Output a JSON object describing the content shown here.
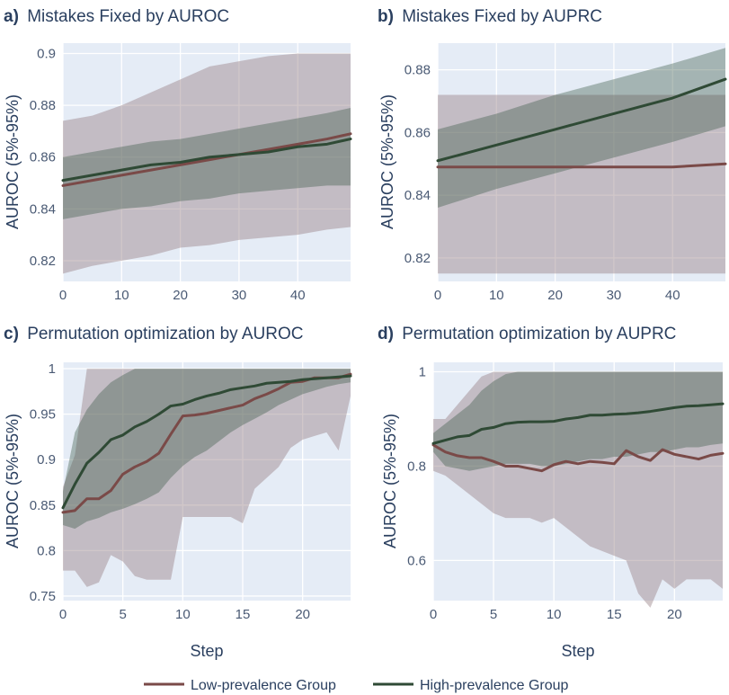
{
  "colors": {
    "low": "#7a4a48",
    "high": "#2f4a35",
    "low_band": "#9a8287",
    "high_band": "#3a5a48",
    "plot_bg": "#e5ecf6"
  },
  "legend": {
    "low_label": "Low-prevalence Group",
    "high_label": "High-prevalence Group"
  },
  "chart_data": [
    {
      "id": "a",
      "type": "line",
      "panel_letter": "a)",
      "title": "Mistakes Fixed by AUROC",
      "ylabel": "AUROC (5%-95%)",
      "xlabel": "",
      "xlim": [
        0,
        49
      ],
      "ylim": [
        0.812,
        0.904
      ],
      "xticks": [
        0,
        10,
        20,
        30,
        40
      ],
      "yticks": [
        0.82,
        0.84,
        0.86,
        0.88,
        0.9
      ],
      "x": [
        0,
        5,
        10,
        15,
        20,
        25,
        30,
        35,
        40,
        45,
        49
      ],
      "series": [
        {
          "name": "Low-prevalence Group",
          "values": [
            0.849,
            0.851,
            0.853,
            0.855,
            0.857,
            0.859,
            0.861,
            0.863,
            0.865,
            0.867,
            0.869
          ],
          "lower": [
            0.815,
            0.818,
            0.82,
            0.822,
            0.825,
            0.826,
            0.828,
            0.829,
            0.83,
            0.832,
            0.833
          ],
          "upper": [
            0.874,
            0.876,
            0.88,
            0.885,
            0.89,
            0.895,
            0.897,
            0.899,
            0.9,
            0.9,
            0.9
          ]
        },
        {
          "name": "High-prevalence Group",
          "values": [
            0.851,
            0.853,
            0.855,
            0.857,
            0.858,
            0.86,
            0.861,
            0.862,
            0.864,
            0.865,
            0.867
          ],
          "lower": [
            0.836,
            0.838,
            0.84,
            0.841,
            0.843,
            0.844,
            0.846,
            0.847,
            0.848,
            0.849,
            0.849
          ],
          "upper": [
            0.86,
            0.862,
            0.864,
            0.866,
            0.867,
            0.869,
            0.871,
            0.873,
            0.875,
            0.877,
            0.879
          ]
        }
      ]
    },
    {
      "id": "b",
      "type": "line",
      "panel_letter": "b)",
      "title": "Mistakes Fixed by AUPRC",
      "ylabel": "AUROC (5%-95%)",
      "xlabel": "",
      "xlim": [
        0,
        49
      ],
      "ylim": [
        0.8125,
        0.8885
      ],
      "xticks": [
        0,
        10,
        20,
        30,
        40
      ],
      "yticks": [
        0.82,
        0.84,
        0.86,
        0.88
      ],
      "x": [
        0,
        10,
        20,
        30,
        40,
        49
      ],
      "series": [
        {
          "name": "Low-prevalence Group",
          "values": [
            0.849,
            0.849,
            0.849,
            0.849,
            0.849,
            0.85
          ],
          "lower": [
            0.815,
            0.815,
            0.815,
            0.815,
            0.815,
            0.815
          ],
          "upper": [
            0.872,
            0.872,
            0.872,
            0.872,
            0.872,
            0.872
          ]
        },
        {
          "name": "High-prevalence Group",
          "values": [
            0.851,
            0.856,
            0.861,
            0.866,
            0.871,
            0.877
          ],
          "lower": [
            0.836,
            0.842,
            0.847,
            0.852,
            0.857,
            0.862
          ],
          "upper": [
            0.861,
            0.866,
            0.872,
            0.877,
            0.882,
            0.887
          ]
        }
      ]
    },
    {
      "id": "c",
      "type": "line",
      "panel_letter": "c)",
      "title": "Permutation optimization by AUROC",
      "ylabel": "AUROC (5%-95%)",
      "xlabel": "Step",
      "xlim": [
        0,
        24
      ],
      "ylim": [
        0.745,
        1.007
      ],
      "xticks": [
        0,
        5,
        10,
        15,
        20
      ],
      "yticks": [
        0.75,
        0.8,
        0.85,
        0.9,
        0.95,
        1
      ],
      "x": [
        0,
        1,
        2,
        3,
        4,
        5,
        6,
        7,
        8,
        9,
        10,
        11,
        12,
        13,
        14,
        15,
        16,
        17,
        18,
        19,
        20,
        21,
        22,
        23,
        24
      ],
      "series": [
        {
          "name": "Low-prevalence Group",
          "values": [
            0.842,
            0.844,
            0.857,
            0.857,
            0.866,
            0.884,
            0.892,
            0.898,
            0.907,
            0.928,
            0.948,
            0.949,
            0.951,
            0.954,
            0.957,
            0.96,
            0.967,
            0.972,
            0.978,
            0.985,
            0.986,
            0.99,
            0.99,
            0.99,
            0.994
          ],
          "lower": [
            0.778,
            0.778,
            0.76,
            0.765,
            0.795,
            0.788,
            0.772,
            0.768,
            0.768,
            0.768,
            0.837,
            0.837,
            0.837,
            0.837,
            0.837,
            0.83,
            0.868,
            0.88,
            0.892,
            0.913,
            0.922,
            0.926,
            0.93,
            0.91,
            0.97
          ],
          "upper": [
            0.87,
            0.905,
            1.0,
            1.0,
            1.0,
            1.0,
            1.0,
            1.0,
            1.0,
            1.0,
            1.0,
            1.0,
            1.0,
            1.0,
            1.0,
            1.0,
            1.0,
            1.0,
            1.0,
            1.0,
            1.0,
            1.0,
            1.0,
            1.0,
            1.0
          ]
        },
        {
          "name": "High-prevalence Group",
          "values": [
            0.847,
            0.873,
            0.896,
            0.908,
            0.922,
            0.927,
            0.936,
            0.942,
            0.95,
            0.959,
            0.961,
            0.966,
            0.97,
            0.973,
            0.977,
            0.979,
            0.981,
            0.984,
            0.985,
            0.986,
            0.988,
            0.989,
            0.99,
            0.991,
            0.992
          ],
          "lower": [
            0.828,
            0.824,
            0.832,
            0.836,
            0.842,
            0.846,
            0.851,
            0.857,
            0.864,
            0.88,
            0.893,
            0.903,
            0.91,
            0.92,
            0.93,
            0.938,
            0.945,
            0.952,
            0.96,
            0.966,
            0.972,
            0.976,
            0.98,
            0.983,
            0.985
          ],
          "upper": [
            0.865,
            0.93,
            0.955,
            0.972,
            0.985,
            0.993,
            1.0,
            1.0,
            1.0,
            1.0,
            1.0,
            1.0,
            1.0,
            1.0,
            1.0,
            1.0,
            1.0,
            1.0,
            1.0,
            1.0,
            1.0,
            1.0,
            1.0,
            1.0,
            1.0
          ]
        }
      ]
    },
    {
      "id": "d",
      "type": "line",
      "panel_letter": "d)",
      "title": "Permutation optimization by AUPRC",
      "ylabel": "AUROC (5%-95%)",
      "xlabel": "Step",
      "xlim": [
        0,
        24
      ],
      "ylim": [
        0.515,
        1.02
      ],
      "xticks": [
        0,
        5,
        10,
        15,
        20
      ],
      "yticks": [
        0.6,
        0.8,
        1
      ],
      "x": [
        0,
        1,
        2,
        3,
        4,
        5,
        6,
        7,
        8,
        9,
        10,
        11,
        12,
        13,
        14,
        15,
        16,
        17,
        18,
        19,
        20,
        21,
        22,
        23,
        24
      ],
      "series": [
        {
          "name": "Low-prevalence Group",
          "values": [
            0.845,
            0.83,
            0.822,
            0.818,
            0.818,
            0.81,
            0.8,
            0.8,
            0.795,
            0.79,
            0.803,
            0.81,
            0.805,
            0.81,
            0.808,
            0.805,
            0.833,
            0.82,
            0.812,
            0.835,
            0.825,
            0.82,
            0.815,
            0.823,
            0.827
          ],
          "lower": [
            0.79,
            0.78,
            0.76,
            0.74,
            0.72,
            0.7,
            0.69,
            0.69,
            0.69,
            0.68,
            0.69,
            0.67,
            0.65,
            0.63,
            0.62,
            0.61,
            0.6,
            0.53,
            0.5,
            0.56,
            0.54,
            0.56,
            0.56,
            0.56,
            0.54
          ],
          "upper": [
            0.9,
            0.9,
            0.93,
            0.96,
            0.99,
            1.0,
            1.0,
            1.0,
            1.0,
            1.0,
            1.0,
            1.0,
            1.0,
            1.0,
            1.0,
            1.0,
            1.0,
            1.0,
            1.0,
            1.0,
            1.0,
            1.0,
            1.0,
            1.0,
            1.0
          ]
        },
        {
          "name": "High-prevalence Group",
          "values": [
            0.848,
            0.855,
            0.862,
            0.865,
            0.878,
            0.882,
            0.89,
            0.893,
            0.894,
            0.894,
            0.895,
            0.9,
            0.903,
            0.908,
            0.908,
            0.91,
            0.911,
            0.913,
            0.916,
            0.92,
            0.924,
            0.927,
            0.928,
            0.93,
            0.932
          ],
          "lower": [
            0.83,
            0.8,
            0.795,
            0.79,
            0.795,
            0.8,
            0.805,
            0.805,
            0.805,
            0.8,
            0.8,
            0.805,
            0.81,
            0.815,
            0.815,
            0.82,
            0.82,
            0.825,
            0.83,
            0.83,
            0.835,
            0.84,
            0.84,
            0.845,
            0.848
          ],
          "upper": [
            0.87,
            0.89,
            0.91,
            0.93,
            0.96,
            0.98,
            0.995,
            1.0,
            1.0,
            1.0,
            1.0,
            1.0,
            1.0,
            1.0,
            1.0,
            1.0,
            1.0,
            1.0,
            1.0,
            1.0,
            1.0,
            1.0,
            1.0,
            1.0,
            1.0
          ]
        }
      ]
    }
  ]
}
